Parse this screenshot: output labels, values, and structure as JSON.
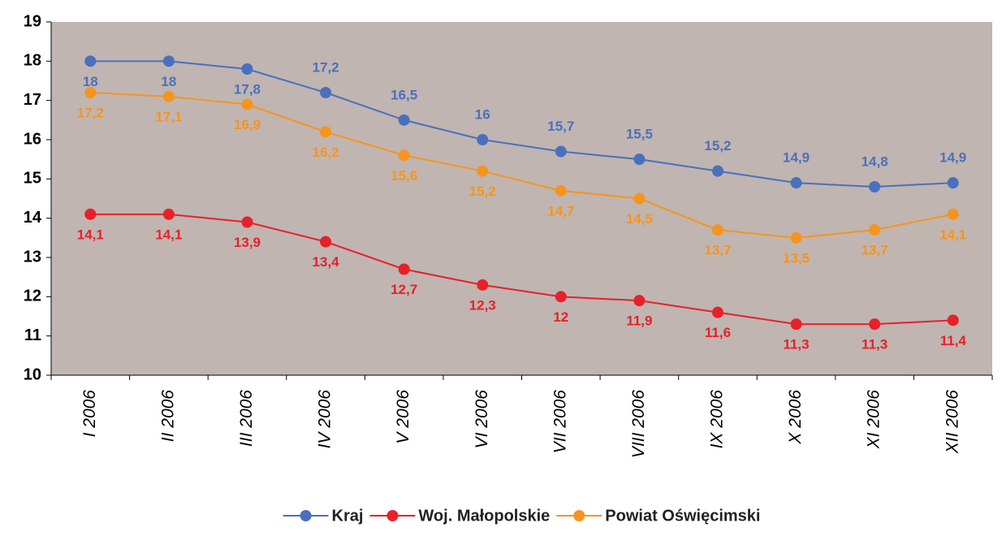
{
  "chart_data": {
    "type": "line",
    "categories": [
      "I 2006",
      "II 2006",
      "III 2006",
      "IV 2006",
      "V 2006",
      "VI 2006",
      "VII 2006",
      "VIII 2006",
      "IX 2006",
      "X 2006",
      "XI 2006",
      "XII 2006"
    ],
    "series": [
      {
        "name": "Kraj",
        "color": "#4a70bd",
        "values": [
          18,
          18,
          17.8,
          17.2,
          16.5,
          16,
          15.7,
          15.5,
          15.2,
          14.9,
          14.8,
          14.9
        ],
        "value_labels": [
          "18",
          "18",
          "17,8",
          "17,2",
          "16,5",
          "16",
          "15,7",
          "15,5",
          "15,2",
          "14,9",
          "14,8",
          "14,9"
        ]
      },
      {
        "name": "Woj. Małopolskie",
        "color": "#e8202a",
        "values": [
          14.1,
          14.1,
          13.9,
          13.4,
          12.7,
          12.3,
          12,
          11.9,
          11.6,
          11.3,
          11.3,
          11.4
        ],
        "value_labels": [
          "14,1",
          "14,1",
          "13,9",
          "13,4",
          "12,7",
          "12,3",
          "12",
          "11,9",
          "11,6",
          "11,3",
          "11,3",
          "11,4"
        ]
      },
      {
        "name": "Powiat Oświęcimski",
        "color": "#f7941d",
        "values": [
          17.2,
          17.1,
          16.9,
          16.2,
          15.6,
          15.2,
          14.7,
          14.5,
          13.7,
          13.5,
          13.7,
          14.1
        ],
        "value_labels": [
          "17,2",
          "17,1",
          "16,9",
          "16,2",
          "15,6",
          "15,2",
          "14,7",
          "14,5",
          "13,7",
          "13,5",
          "13,7",
          "14,1"
        ]
      }
    ],
    "ylim": [
      10,
      19
    ],
    "yticks": [
      10,
      11,
      12,
      13,
      14,
      15,
      16,
      17,
      18,
      19
    ],
    "grid": false,
    "legend": "bottom"
  }
}
